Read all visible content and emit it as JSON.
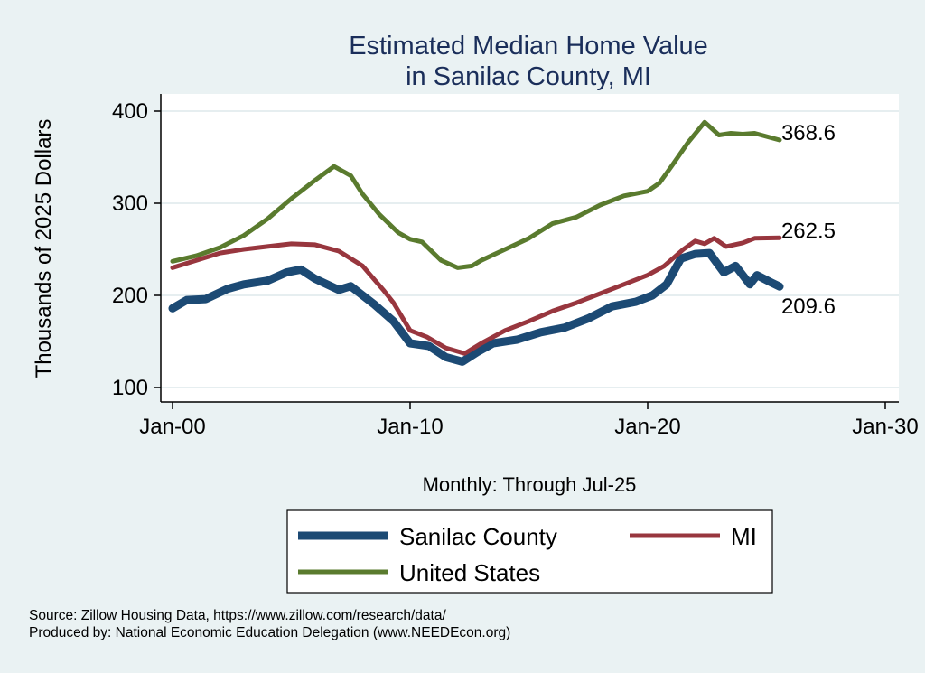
{
  "chart_data": {
    "type": "line",
    "title": [
      "Estimated Median Home Value",
      "in Sanilac County, MI"
    ],
    "ylabel": "Thousands of 2025 Dollars",
    "xlabel": "Monthly: Through Jul-25",
    "ylim": [
      90,
      410
    ],
    "xlim": [
      1999.5,
      2030.3
    ],
    "yticks": [
      100,
      200,
      300,
      400
    ],
    "xticks": [
      {
        "x": 2000,
        "label": "Jan-00"
      },
      {
        "x": 2010,
        "label": "Jan-10"
      },
      {
        "x": 2020,
        "label": "Jan-20"
      },
      {
        "x": 2030,
        "label": "Jan-30"
      }
    ],
    "grid": true,
    "legend_position": "bottom",
    "series": [
      {
        "name": "Sanilac County",
        "color": "#1c4a74",
        "end_label": "209.6",
        "x": [
          2000,
          2000.6,
          2001.4,
          2002.3,
          2003,
          2004,
          2004.8,
          2005.4,
          2006,
          2007,
          2007.5,
          2008.5,
          2009.3,
          2010,
          2010.8,
          2011.5,
          2012.2,
          2012.8,
          2013.5,
          2014.5,
          2015.5,
          2016.5,
          2017.5,
          2018.5,
          2019.5,
          2020.2,
          2020.8,
          2021.4,
          2022,
          2022.6,
          2023.2,
          2023.7,
          2024.3,
          2024.6,
          2025.2,
          2025.55
        ],
        "y": [
          186,
          195,
          196,
          207,
          212,
          216,
          225,
          228,
          218,
          206,
          210,
          190,
          172,
          148,
          145,
          133,
          128,
          138,
          148,
          152,
          160,
          165,
          175,
          188,
          193,
          200,
          212,
          240,
          245,
          246,
          225,
          232,
          212,
          222,
          214,
          209.6
        ]
      },
      {
        "name": "MI",
        "color": "#98363e",
        "end_label": "262.5",
        "x": [
          2000,
          2001,
          2002,
          2003,
          2004,
          2005,
          2006,
          2007,
          2008,
          2008.9,
          2009.3,
          2010,
          2010.7,
          2011.5,
          2012.3,
          2013,
          2014,
          2015,
          2016,
          2017,
          2018,
          2019,
          2020,
          2020.7,
          2021.5,
          2022,
          2022.4,
          2022.8,
          2023.3,
          2024,
          2024.5,
          2025.55
        ],
        "y": [
          230,
          238,
          246,
          250,
          253,
          256,
          255,
          248,
          232,
          205,
          192,
          162,
          155,
          143,
          137,
          148,
          162,
          172,
          183,
          192,
          202,
          212,
          222,
          232,
          250,
          259,
          256,
          262,
          253,
          257,
          262,
          262.5
        ]
      },
      {
        "name": "United States",
        "color": "#5a7b2e",
        "end_label": "368.6",
        "x": [
          2000,
          2001,
          2002,
          2003,
          2004,
          2005,
          2006,
          2006.8,
          2007.5,
          2008,
          2008.7,
          2009.5,
          2010,
          2010.5,
          2011.3,
          2012,
          2012.6,
          2013,
          2014,
          2015,
          2016,
          2017,
          2018,
          2019,
          2020,
          2020.5,
          2021,
          2021.7,
          2022.4,
          2023,
          2023.5,
          2024,
          2024.5,
          2025.55
        ],
        "y": [
          237,
          243,
          252,
          265,
          283,
          305,
          325,
          340,
          330,
          310,
          288,
          268,
          261,
          258,
          238,
          230,
          232,
          238,
          250,
          262,
          278,
          285,
          298,
          308,
          313,
          322,
          340,
          366,
          388,
          374,
          376,
          375,
          376,
          368.6
        ]
      }
    ]
  },
  "source": "Source: Zillow Housing Data, https://www.zillow.com/research/data/",
  "producer": "Produced by: National Economic Education Delegation (www.NEEDEcon.org)"
}
